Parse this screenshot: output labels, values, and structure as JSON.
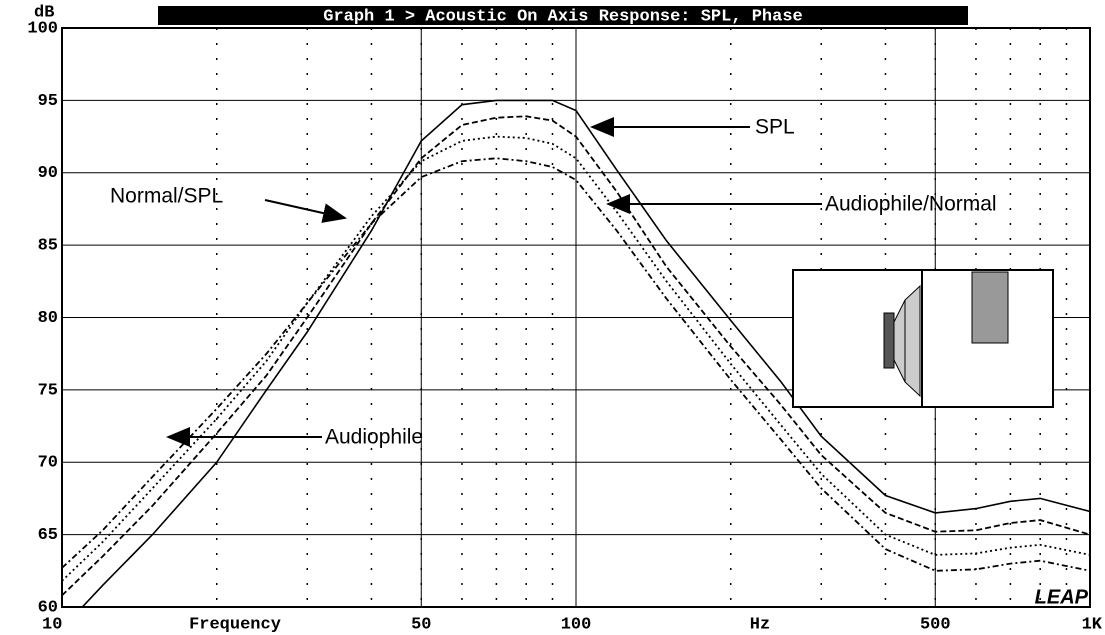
{
  "chart_data": {
    "type": "line",
    "title": "Graph 1 > Acoustic On Axis Response: SPL, Phase",
    "y_label": "dB",
    "x_label": "Frequency",
    "x_unit": "Hz",
    "logo": "LEAP",
    "log_x": true,
    "grid": true,
    "xlim": [
      10,
      1000
    ],
    "xticks": [
      10,
      50,
      100,
      500,
      {
        "value": 1000,
        "label": "1K"
      }
    ],
    "ylim": [
      60,
      100
    ],
    "yticks": [
      60,
      65,
      70,
      75,
      80,
      85,
      90,
      95,
      100
    ],
    "x": [
      10,
      12,
      15,
      20,
      25,
      30,
      40,
      50,
      60,
      70,
      80,
      90,
      100,
      120,
      150,
      200,
      250,
      300,
      400,
      500,
      600,
      700,
      800,
      1000
    ],
    "series": [
      {
        "name": "SPL",
        "color": "#000000",
        "style": "solid",
        "values": [
          58.5,
          61.5,
          65,
          70,
          75,
          79,
          86,
          92.2,
          94.7,
          95,
          95,
          95,
          94.3,
          90.2,
          85.3,
          79.8,
          75.6,
          71.8,
          67.7,
          66.5,
          66.8,
          67.3,
          67.5,
          66.6
        ]
      },
      {
        "name": "Normal/SPL",
        "color": "#000000",
        "style": "dashed",
        "values": [
          60.8,
          63.5,
          67,
          72,
          76,
          80,
          86.5,
          91,
          93.3,
          93.8,
          93.9,
          93.6,
          92.5,
          88.7,
          83.5,
          78,
          74,
          70.5,
          66.5,
          65.2,
          65.3,
          65.8,
          66,
          65
        ]
      },
      {
        "name": "Audiophile/Normal",
        "color": "#000000",
        "style": "dotted",
        "values": [
          61.8,
          64.5,
          68.2,
          73,
          77,
          81,
          87,
          90.8,
          92.2,
          92.5,
          92.4,
          92,
          91,
          87.3,
          82.5,
          76.8,
          72.6,
          69.2,
          65,
          63.6,
          63.7,
          64.1,
          64.3,
          63.6
        ]
      },
      {
        "name": "Audiophile",
        "color": "#000000",
        "style": "dashdot",
        "values": [
          62.7,
          65.3,
          69,
          73.7,
          77.5,
          81,
          86.5,
          89.7,
          90.8,
          91,
          90.8,
          90.4,
          89.5,
          86,
          81.3,
          75.7,
          71.6,
          68.2,
          64,
          62.5,
          62.6,
          63,
          63.2,
          62.5
        ]
      }
    ]
  }
}
